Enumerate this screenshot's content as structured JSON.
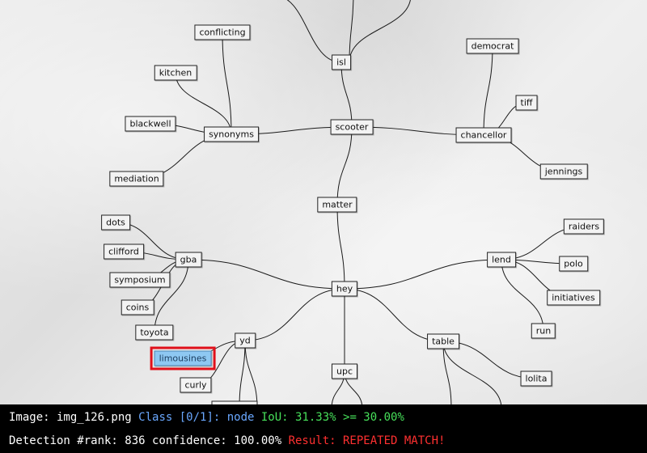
{
  "diagram": {
    "nodes": [
      {
        "id": "isl",
        "label": "isl"
      },
      {
        "id": "scooter",
        "label": "scooter"
      },
      {
        "id": "matter",
        "label": "matter"
      },
      {
        "id": "hey",
        "label": "hey"
      },
      {
        "id": "synonyms",
        "label": "synonyms"
      },
      {
        "id": "conflicting",
        "label": "conflicting"
      },
      {
        "id": "kitchen",
        "label": "kitchen"
      },
      {
        "id": "blackwell",
        "label": "blackwell"
      },
      {
        "id": "mediation",
        "label": "mediation"
      },
      {
        "id": "chancellor",
        "label": "chancellor"
      },
      {
        "id": "democrat",
        "label": "democrat"
      },
      {
        "id": "tiff",
        "label": "tiff"
      },
      {
        "id": "jennings",
        "label": "jennings"
      },
      {
        "id": "gba",
        "label": "gba"
      },
      {
        "id": "dots",
        "label": "dots"
      },
      {
        "id": "clifford",
        "label": "clifford"
      },
      {
        "id": "symposium",
        "label": "symposium"
      },
      {
        "id": "coins",
        "label": "coins"
      },
      {
        "id": "toyota",
        "label": "toyota"
      },
      {
        "id": "lend",
        "label": "lend"
      },
      {
        "id": "raiders",
        "label": "raiders"
      },
      {
        "id": "polo",
        "label": "polo"
      },
      {
        "id": "initiatives",
        "label": "initiatives"
      },
      {
        "id": "run",
        "label": "run"
      },
      {
        "id": "yd",
        "label": "yd"
      },
      {
        "id": "limousines",
        "label": "limousines",
        "highlighted": true
      },
      {
        "id": "curly",
        "label": "curly"
      },
      {
        "id": "upc",
        "label": "upc"
      },
      {
        "id": "table",
        "label": "table"
      },
      {
        "id": "lolita",
        "label": "lolita"
      }
    ],
    "edges": [
      [
        "isl",
        "scooter"
      ],
      [
        "scooter",
        "synonyms"
      ],
      [
        "scooter",
        "chancellor"
      ],
      [
        "scooter",
        "matter"
      ],
      [
        "matter",
        "hey"
      ],
      [
        "synonyms",
        "conflicting"
      ],
      [
        "synonyms",
        "kitchen"
      ],
      [
        "synonyms",
        "blackwell"
      ],
      [
        "synonyms",
        "mediation"
      ],
      [
        "chancellor",
        "democrat"
      ],
      [
        "chancellor",
        "tiff"
      ],
      [
        "chancellor",
        "jennings"
      ],
      [
        "hey",
        "gba"
      ],
      [
        "hey",
        "lend"
      ],
      [
        "hey",
        "yd"
      ],
      [
        "hey",
        "upc"
      ],
      [
        "hey",
        "table"
      ],
      [
        "gba",
        "dots"
      ],
      [
        "gba",
        "clifford"
      ],
      [
        "gba",
        "symposium"
      ],
      [
        "gba",
        "coins"
      ],
      [
        "gba",
        "toyota"
      ],
      [
        "lend",
        "raiders"
      ],
      [
        "lend",
        "polo"
      ],
      [
        "lend",
        "initiatives"
      ],
      [
        "lend",
        "run"
      ],
      [
        "yd",
        "limousines"
      ],
      [
        "yd",
        "curly"
      ],
      [
        "table",
        "lolita"
      ]
    ]
  },
  "status": {
    "line1": {
      "image_label": "Image: img_126.png ",
      "class_text": "Class [0/1]: node ",
      "iou_text": "IoU: 31.33% >= 30.00%"
    },
    "line2": {
      "detection_text": "Detection #rank: 836 confidence: 100.00% ",
      "result_text": "Result: REPEATED MATCH!"
    },
    "colors": {
      "class": "#6aa8ff",
      "iou": "#47e05a",
      "result": "#ff3030"
    }
  }
}
